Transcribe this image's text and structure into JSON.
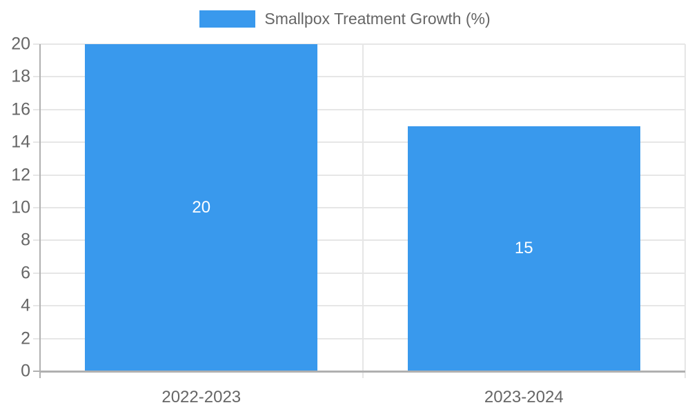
{
  "chart_data": {
    "type": "bar",
    "title": "Smallpox Treatment Growth (%)",
    "categories": [
      "2022-2023",
      "2023-2024"
    ],
    "series": [
      {
        "name": "Smallpox Treatment Growth (%)",
        "values": [
          20,
          15
        ]
      }
    ],
    "value_labels": [
      "20",
      "15"
    ],
    "xlabel": "",
    "ylabel": "",
    "ylim": [
      0,
      20
    ],
    "yticks": [
      0,
      2,
      4,
      6,
      8,
      10,
      12,
      14,
      16,
      18,
      20
    ],
    "grid": true,
    "legend_position": "top",
    "colors": {
      "bar": "#3999ed",
      "grid": "#e6e6e6",
      "axis": "#b0b0b0",
      "tick_text": "#666666",
      "value_label": "#ffffff",
      "background": "#ffffff"
    }
  }
}
